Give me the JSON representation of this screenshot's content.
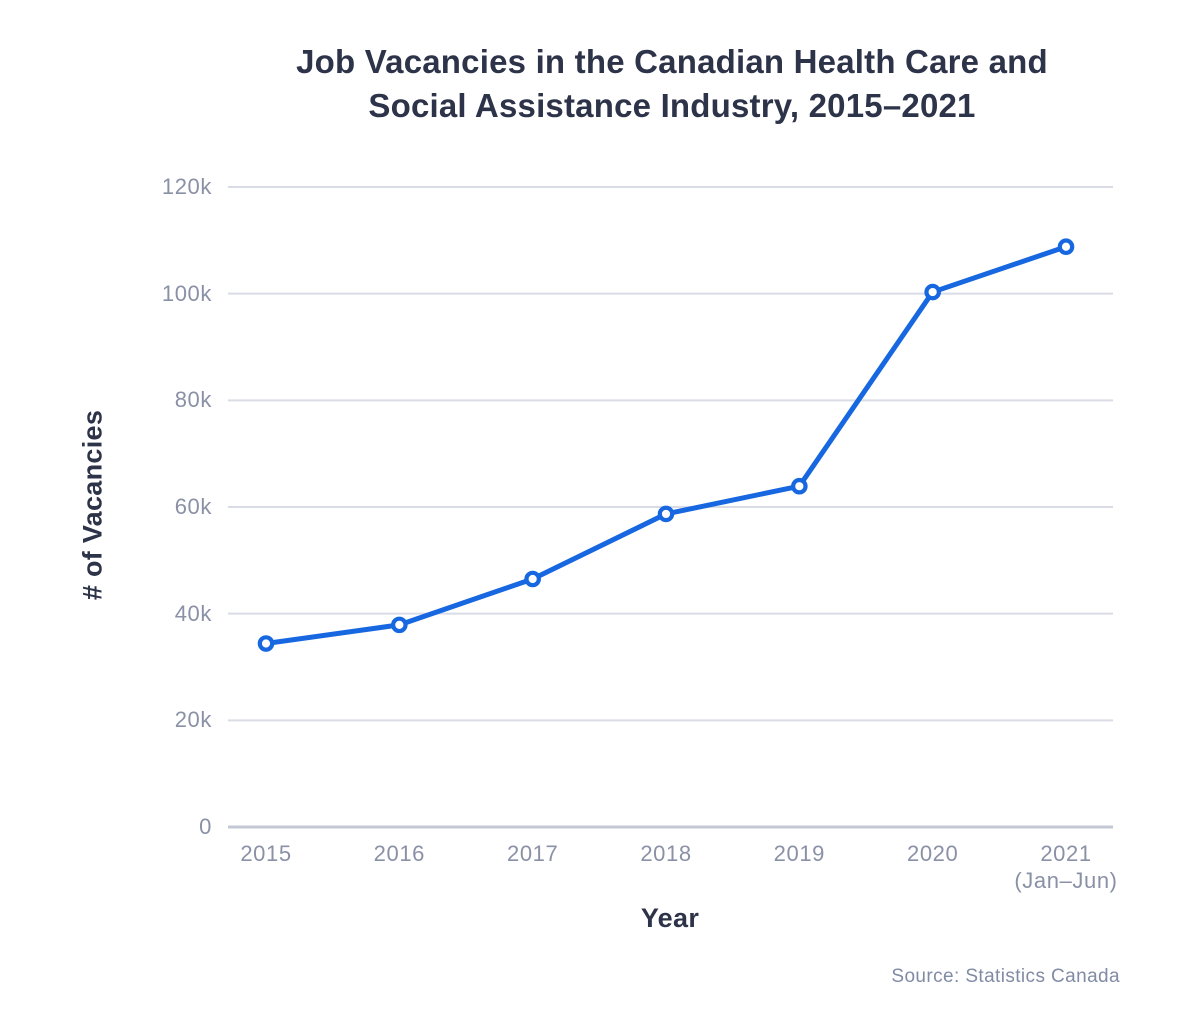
{
  "page": {
    "source": "Source: Statistics Canada"
  },
  "chart_data": {
    "type": "line",
    "title": "Job Vacancies in the Canadian Health Care and Social Assistance Industry, 2015–2021",
    "title_lines": [
      "Job Vacancies in the Canadian Health Care and",
      "Social Assistance Industry, 2015–2021"
    ],
    "xlabel": "Year",
    "ylabel": "# of Vacancies",
    "categories": [
      "2015",
      "2016",
      "2017",
      "2018",
      "2019",
      "2020",
      "2021\n(Jan–Jun)"
    ],
    "values": [
      34400,
      37900,
      46500,
      58700,
      63900,
      100300,
      108800
    ],
    "ylim": [
      0,
      120000
    ],
    "yticks": [
      0,
      20000,
      40000,
      60000,
      80000,
      100000,
      120000
    ],
    "ytick_labels": [
      "0",
      "20k",
      "40k",
      "60k",
      "80k",
      "100k",
      "120k"
    ],
    "grid": "horizontal",
    "legend": "none",
    "marker": "open-circle",
    "colors": {
      "line": "#1667e0",
      "marker_fill": "#ffffff",
      "grid": "#d9dce5",
      "zero_line": "#c3c8d4",
      "title": "#2d3348",
      "tick": "#8a91a6",
      "source": "#818ba4"
    }
  }
}
